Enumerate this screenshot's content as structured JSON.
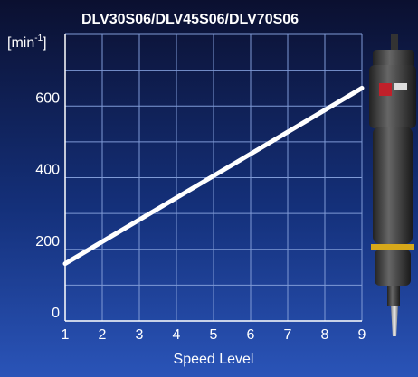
{
  "chart_data": {
    "type": "line",
    "title": "DLV30S06/DLV45S06/DLV70S06",
    "y_label": [
      "[min",
      "-1",
      "]"
    ],
    "x_label": "Speed Level",
    "x": [
      1,
      9
    ],
    "series": [
      {
        "color": "#ffffff",
        "values": [
          160,
          650
        ]
      }
    ],
    "xlim": [
      1,
      9
    ],
    "xticks": [
      1,
      2,
      3,
      4,
      5,
      6,
      7,
      8,
      9
    ],
    "ylim": [
      0,
      800
    ],
    "yticks": [
      0,
      200,
      400,
      600
    ],
    "ygrid": [
      100,
      200,
      300,
      400,
      500,
      600,
      700,
      800
    ],
    "grid": true
  }
}
